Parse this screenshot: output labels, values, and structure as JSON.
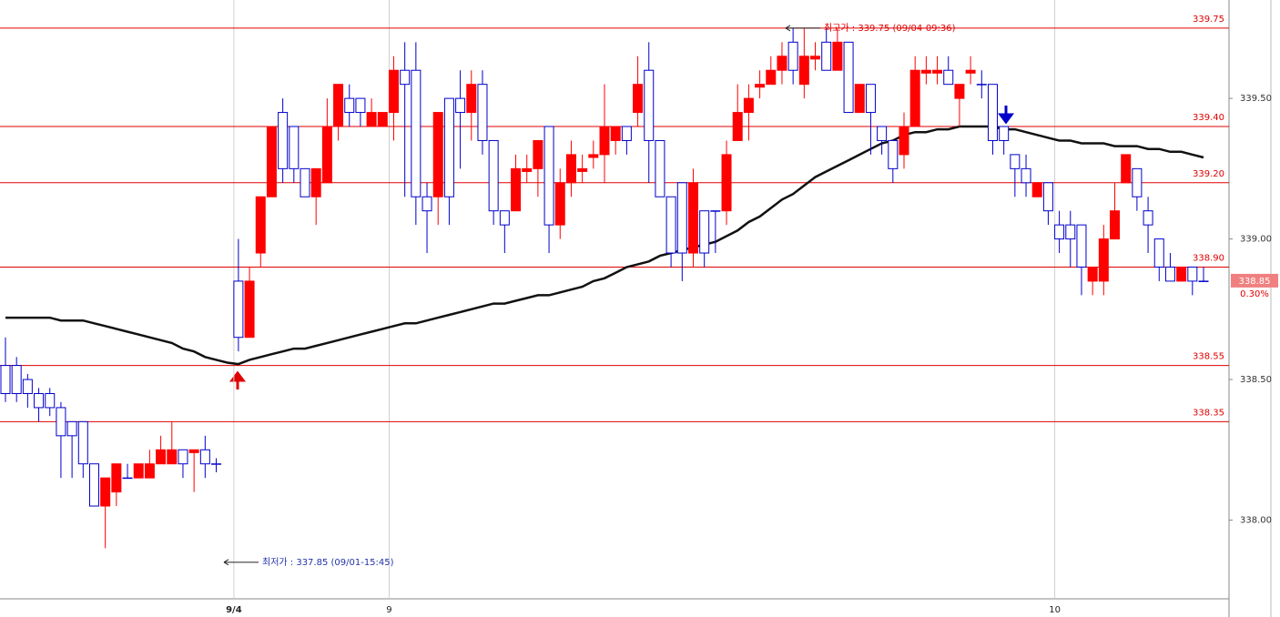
{
  "chart_data": {
    "type": "candlestick",
    "categories": [
      null,
      null,
      null,
      null,
      null,
      null,
      null,
      null,
      null,
      null,
      null,
      null,
      null,
      null,
      null,
      null,
      null,
      null,
      null,
      null,
      null,
      "9/4",
      null,
      null,
      null,
      null,
      null,
      null,
      null,
      null,
      null,
      null,
      null,
      null,
      null,
      "9",
      null,
      null,
      null,
      null,
      null,
      null,
      null,
      null,
      null,
      null,
      null,
      null,
      null,
      null,
      null,
      null,
      null,
      null,
      null,
      null,
      null,
      null,
      null,
      null,
      null,
      null,
      null,
      null,
      null,
      null,
      null,
      null,
      null,
      null,
      null,
      null,
      null,
      null,
      null,
      null,
      null,
      null,
      null,
      null,
      null,
      null,
      null,
      null,
      null,
      null,
      null,
      null,
      null,
      null,
      null,
      null,
      null,
      null,
      null,
      "10",
      null,
      null,
      null,
      null,
      null,
      null,
      null,
      null,
      null,
      null,
      null,
      null,
      null
    ],
    "open": [
      338.55,
      338.55,
      338.5,
      338.45,
      338.45,
      338.4,
      338.35,
      338.35,
      338.2,
      338.05,
      338.1,
      338.15,
      338.15,
      338.15,
      338.2,
      338.2,
      338.25,
      338.24,
      338.25,
      338.2,
      null,
      338.85,
      338.65,
      338.95,
      339.15,
      339.45,
      339.4,
      339.25,
      339.15,
      339.2,
      339.4,
      339.5,
      339.5,
      339.4,
      339.4,
      339.45,
      339.6,
      339.6,
      339.15,
      339.15,
      339.5,
      339.5,
      339.45,
      339.55,
      339.35,
      339.1,
      339.1,
      339.24,
      339.25,
      339.4,
      339.05,
      339.2,
      339.24,
      339.29,
      339.3,
      339.35,
      339.4,
      339.45,
      339.6,
      339.35,
      339.15,
      339.2,
      338.95,
      339.1,
      339.1,
      339.1,
      339.35,
      339.45,
      339.54,
      339.55,
      339.6,
      339.7,
      339.55,
      339.64,
      339.7,
      339.6,
      339.7,
      339.45,
      339.55,
      339.4,
      339.35,
      339.3,
      339.4,
      339.59,
      339.59,
      339.6,
      339.5,
      339.59,
      339.55,
      339.55,
      339.4,
      339.3,
      339.25,
      339.15,
      339.2,
      339.05,
      339.05,
      339.05,
      338.85,
      338.85,
      339,
      339.2,
      339.25,
      339.1,
      339,
      338.9,
      338.85,
      338.9,
      338.85
    ],
    "high": [
      338.65,
      338.58,
      338.52,
      338.47,
      338.47,
      338.42,
      338.35,
      338.35,
      338.2,
      338.15,
      338.2,
      338.2,
      338.2,
      338.25,
      338.3,
      338.35,
      338.25,
      338.25,
      338.3,
      338.22,
      null,
      339,
      338.9,
      339.15,
      339.4,
      339.5,
      339.4,
      339.25,
      339.25,
      339.5,
      339.55,
      339.55,
      339.5,
      339.5,
      339.45,
      339.65,
      339.7,
      339.7,
      339.2,
      339.45,
      339.5,
      339.6,
      339.6,
      339.6,
      339.35,
      339.1,
      339.3,
      339.3,
      339.35,
      339.4,
      339.25,
      339.35,
      339.3,
      339.35,
      339.55,
      339.4,
      339.4,
      339.65,
      339.7,
      339.35,
      339.15,
      339.2,
      339.25,
      339.1,
      339.1,
      339.35,
      339.55,
      339.55,
      339.6,
      339.65,
      339.7,
      339.75,
      339.75,
      339.7,
      339.75,
      339.75,
      339.7,
      339.55,
      339.55,
      339.4,
      339.35,
      339.45,
      339.65,
      339.65,
      339.65,
      339.65,
      339.55,
      339.65,
      339.6,
      339.55,
      339.4,
      339.3,
      339.3,
      339.2,
      339.2,
      339.1,
      339.1,
      339.05,
      338.9,
      339.05,
      339.2,
      339.3,
      339.25,
      339.15,
      339,
      338.95,
      338.9,
      338.9,
      338.9
    ],
    "low": [
      338.42,
      338.42,
      338.4,
      338.35,
      338.37,
      338.15,
      338.15,
      338.15,
      338.05,
      337.9,
      338.05,
      338.15,
      338.15,
      338.15,
      338.2,
      338.2,
      338.15,
      338.1,
      338.15,
      338.17,
      null,
      338.6,
      338.65,
      338.9,
      339.15,
      339.2,
      339.2,
      339.15,
      339.05,
      339.2,
      339.35,
      339.4,
      339.4,
      339.4,
      339.4,
      339.35,
      339.15,
      339.05,
      338.95,
      339.05,
      339.05,
      339.25,
      339.35,
      339.3,
      339.05,
      338.95,
      339.1,
      339.2,
      339.15,
      338.95,
      339,
      339.15,
      339.2,
      339.25,
      339.2,
      339.3,
      339.3,
      339.4,
      339.2,
      339.15,
      338.9,
      338.85,
      338.9,
      338.9,
      338.95,
      339.05,
      339.35,
      339.35,
      339.5,
      339.55,
      339.55,
      339.55,
      339.5,
      339.6,
      339.6,
      339.6,
      339.45,
      339.45,
      339.3,
      339.3,
      339.2,
      339.25,
      339.4,
      339.55,
      339.55,
      339.55,
      339.4,
      339.55,
      339.5,
      339.3,
      339.3,
      339.15,
      339.15,
      339.15,
      339.05,
      338.95,
      338.9,
      338.8,
      338.8,
      338.8,
      339,
      339.2,
      339.1,
      338.95,
      338.85,
      338.85,
      338.85,
      338.8,
      338.85
    ],
    "close": [
      338.45,
      338.45,
      338.45,
      338.4,
      338.4,
      338.3,
      338.3,
      338.2,
      338.05,
      338.15,
      338.2,
      338.15,
      338.2,
      338.2,
      338.25,
      338.25,
      338.2,
      338.25,
      338.2,
      338.2,
      null,
      338.65,
      338.85,
      339.15,
      339.4,
      339.25,
      339.25,
      339.15,
      339.25,
      339.4,
      339.55,
      339.45,
      339.45,
      339.45,
      339.45,
      339.6,
      339.55,
      339.15,
      339.1,
      339.45,
      339.15,
      339.45,
      339.55,
      339.35,
      339.1,
      339.05,
      339.25,
      339.25,
      339.35,
      339.05,
      339.2,
      339.3,
      339.25,
      339.3,
      339.4,
      339.4,
      339.35,
      339.55,
      339.35,
      339.15,
      338.95,
      338.95,
      339.2,
      338.95,
      339.1,
      339.3,
      339.45,
      339.5,
      339.55,
      339.6,
      339.65,
      339.6,
      339.65,
      339.65,
      339.6,
      339.7,
      339.45,
      339.55,
      339.45,
      339.35,
      339.25,
      339.4,
      339.6,
      339.6,
      339.6,
      339.55,
      339.55,
      339.6,
      339.55,
      339.35,
      339.35,
      339.25,
      339.2,
      339.2,
      339.1,
      339,
      339,
      338.9,
      338.9,
      339,
      339.1,
      339.3,
      339.15,
      339.05,
      338.9,
      338.85,
      338.9,
      338.85,
      338.85
    ],
    "up_color": "#ff0000",
    "down_color": "#0000cc",
    "moving_average": {
      "color": "#111111",
      "values": [
        338.72,
        338.72,
        338.72,
        338.72,
        338.72,
        338.71,
        338.71,
        338.71,
        338.7,
        338.69,
        338.68,
        338.67,
        338.66,
        338.65,
        338.64,
        338.63,
        338.61,
        338.6,
        338.58,
        338.57,
        338.56,
        338.555,
        338.57,
        338.58,
        338.59,
        338.6,
        338.61,
        338.61,
        338.62,
        338.63,
        338.64,
        338.65,
        338.66,
        338.67,
        338.68,
        338.69,
        338.7,
        338.7,
        338.71,
        338.72,
        338.73,
        338.74,
        338.75,
        338.76,
        338.77,
        338.77,
        338.78,
        338.79,
        338.8,
        338.8,
        338.81,
        338.82,
        338.83,
        338.85,
        338.86,
        338.88,
        338.9,
        338.91,
        338.92,
        338.94,
        338.95,
        338.96,
        338.97,
        338.98,
        338.99,
        339.01,
        339.03,
        339.06,
        339.08,
        339.11,
        339.14,
        339.16,
        339.19,
        339.22,
        339.24,
        339.26,
        339.28,
        339.3,
        339.32,
        339.34,
        339.35,
        339.37,
        339.38,
        339.38,
        339.39,
        339.39,
        339.4,
        339.4,
        339.4,
        339.4,
        339.39,
        339.39,
        339.38,
        339.37,
        339.36,
        339.35,
        339.35,
        339.34,
        339.34,
        339.34,
        339.33,
        339.33,
        339.33,
        339.32,
        339.32,
        339.31,
        339.31,
        339.3,
        339.29
      ]
    },
    "ylim": [
      337.72,
      339.85
    ],
    "yticks": [
      {
        "value": 338,
        "label": "338.00"
      },
      {
        "value": 338.5,
        "label": "338.50"
      },
      {
        "value": 339,
        "label": "339.00"
      },
      {
        "value": 339.5,
        "label": "339.50"
      }
    ],
    "levels": [
      339.75,
      {
        "value": 339.4,
        "label": "339.40"
      },
      {
        "value": 339.2,
        "label": "339.20"
      },
      {
        "value": 338.9,
        "label": "338.90"
      },
      338.55,
      338.35
    ],
    "level_color": "#e00000",
    "current_price": 338.85,
    "change_label": "0.30%",
    "annotations": [
      {
        "text": "최고가 : 339.75 (09/04-09:36)",
        "value": 339.75,
        "color": "#e00000"
      },
      {
        "text": "최저가 : 337.85 (09/01-15:45)",
        "value": 337.85,
        "color": "#2233aa"
      }
    ],
    "grid": true
  }
}
